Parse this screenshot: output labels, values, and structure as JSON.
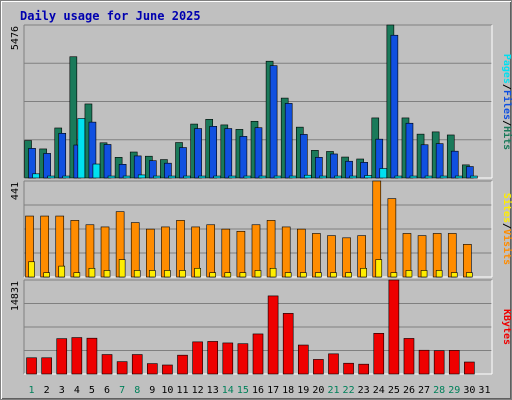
{
  "chart_data": {
    "type": "bar",
    "title": "Daily usage for June 2025",
    "days": [
      "1",
      "2",
      "3",
      "4",
      "5",
      "6",
      "7",
      "8",
      "9",
      "10",
      "11",
      "12",
      "13",
      "14",
      "15",
      "16",
      "17",
      "18",
      "19",
      "20",
      "21",
      "22",
      "23",
      "24",
      "25",
      "26",
      "27",
      "28",
      "29",
      "30",
      "31"
    ],
    "weekend_days": [
      "1",
      "7",
      "8",
      "14",
      "15",
      "21",
      "22",
      "28",
      "29"
    ],
    "panels": [
      {
        "id": "hits-files-pages",
        "ymax": "5476",
        "ylim": [
          0,
          5476
        ],
        "grid": true,
        "legend": [
          "Pages",
          "/",
          "Files",
          "/",
          "Hits"
        ],
        "series": [
          {
            "name": "Hits",
            "color": "#1a7a5a",
            "values": [
              1340,
              1040,
              1790,
              4340,
              2650,
              1260,
              740,
              930,
              780,
              660,
              1270,
              1930,
              2100,
              1900,
              1740,
              2030,
              4180,
              2860,
              1820,
              990,
              950,
              750,
              680,
              2150,
              5476,
              2150,
              1570,
              1650,
              1540,
              470,
              0
            ]
          },
          {
            "name": "Files",
            "color": "#1050e0",
            "values": [
              1060,
              880,
              1600,
              1180,
              2000,
              1200,
              490,
              790,
              620,
              530,
              1090,
              1770,
              1850,
              1770,
              1490,
              1800,
              4020,
              2670,
              1560,
              740,
              860,
              600,
              560,
              1390,
              5110,
              1960,
              1190,
              1230,
              960,
              410,
              0
            ]
          },
          {
            "name": "Pages",
            "color": "#00e0f0",
            "values": [
              150,
              70,
              70,
              2130,
              500,
              70,
              70,
              110,
              70,
              70,
              70,
              70,
              70,
              70,
              70,
              70,
              70,
              70,
              100,
              70,
              70,
              70,
              90,
              340,
              70,
              70,
              70,
              70,
              70,
              70,
              0
            ]
          }
        ]
      },
      {
        "id": "visits-sites",
        "ymax": "441",
        "ylim": [
          0,
          441
        ],
        "grid": true,
        "legend": [
          "Sites",
          "/",
          "Visits"
        ],
        "series": [
          {
            "name": "Visits",
            "color": "#ff8c00",
            "values": [
              280,
              280,
              280,
              260,
              240,
              230,
              300,
              250,
              220,
              230,
              260,
              230,
              240,
              220,
              210,
              240,
              260,
              230,
              220,
              200,
              190,
              180,
              190,
              441,
              360,
              200,
              190,
              200,
              200,
              150,
              0
            ]
          },
          {
            "name": "Sites",
            "color": "#ffee00",
            "values": [
              70,
              20,
              50,
              20,
              40,
              30,
              80,
              30,
              30,
              30,
              30,
              40,
              20,
              20,
              20,
              30,
              40,
              20,
              20,
              20,
              20,
              20,
              40,
              80,
              20,
              30,
              30,
              30,
              20,
              20,
              0
            ]
          }
        ]
      },
      {
        "id": "kbytes",
        "ymax": "14831",
        "ylim": [
          0,
          14831
        ],
        "grid": true,
        "legend": [
          "KBytes"
        ],
        "series": [
          {
            "name": "KBytes",
            "color": "#ee0000",
            "values": [
              2560,
              2560,
              5580,
              5750,
              5650,
              3070,
              1950,
              3070,
              1640,
              1420,
              2970,
              5070,
              5140,
              4900,
              4780,
              6320,
              12320,
              9570,
              4570,
              2300,
              3180,
              1700,
              1550,
              6420,
              14831,
              5610,
              3750,
              3680,
              3730,
              1890,
              0
            ]
          }
        ]
      }
    ]
  }
}
